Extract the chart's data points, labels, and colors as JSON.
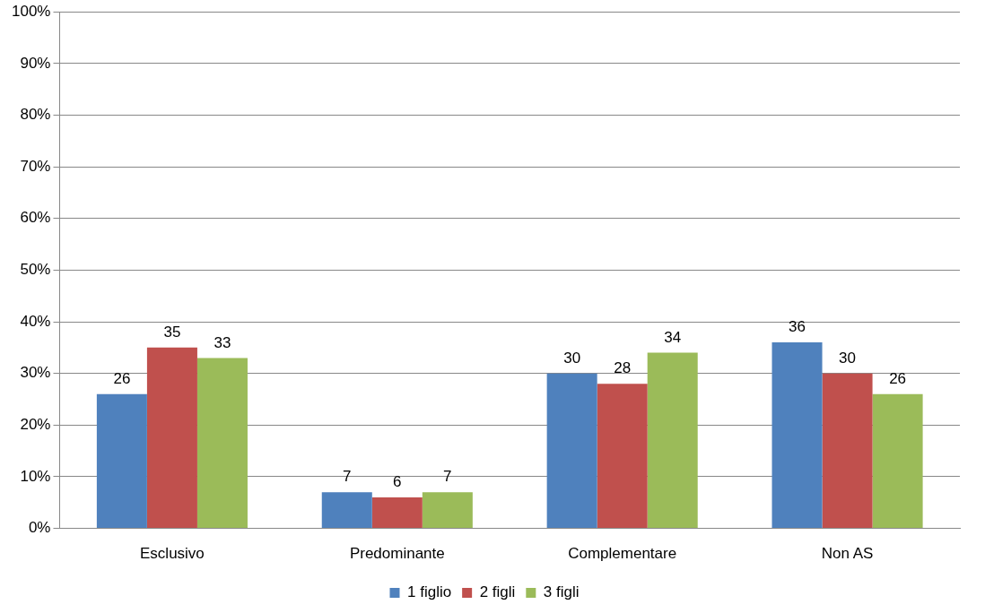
{
  "chart_data": {
    "type": "bar",
    "categories": [
      "Esclusivo",
      "Predominante",
      "Complementare",
      "Non AS"
    ],
    "series": [
      {
        "name": "1 figlio",
        "color": "#4f81bd",
        "values": [
          26,
          7,
          30,
          36
        ]
      },
      {
        "name": "2 figli",
        "color": "#c0504d",
        "values": [
          35,
          6,
          28,
          30
        ]
      },
      {
        "name": "3 figli",
        "color": "#9bbb59",
        "values": [
          33,
          7,
          34,
          26
        ]
      }
    ],
    "ylim": [
      0,
      100
    ],
    "yticks": [
      {
        "value": 0,
        "label": "0%"
      },
      {
        "value": 10,
        "label": "10%"
      },
      {
        "value": 20,
        "label": "20%"
      },
      {
        "value": 30,
        "label": "30%"
      },
      {
        "value": 40,
        "label": "40%"
      },
      {
        "value": 50,
        "label": "50%"
      },
      {
        "value": 60,
        "label": "60%"
      },
      {
        "value": 70,
        "label": "70%"
      },
      {
        "value": 80,
        "label": "80%"
      },
      {
        "value": 90,
        "label": "90%"
      },
      {
        "value": 100,
        "label": "100%"
      }
    ],
    "grid": "y",
    "legend": "bottom",
    "data_labels": true
  }
}
